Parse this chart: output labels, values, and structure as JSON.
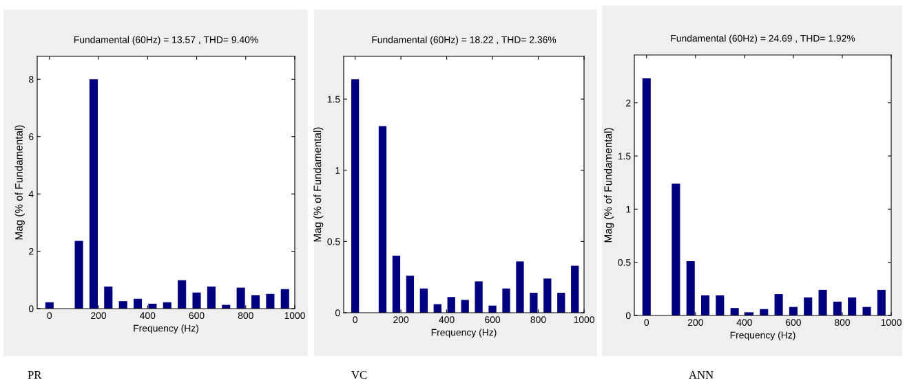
{
  "chart_data": [
    {
      "type": "bar",
      "title": "Fundamental (60Hz) = 13.57 , THD= 9.40%",
      "xlabel": "Frequency (Hz)",
      "ylabel": "Mag (% of Fundamental)",
      "annotations": [
        "PR"
      ],
      "x": [
        0,
        60,
        120,
        180,
        240,
        300,
        360,
        420,
        480,
        540,
        600,
        660,
        720,
        780,
        840,
        900,
        960
      ],
      "series": [
        {
          "color": "#000080",
          "values": [
            0.22,
            null,
            2.36,
            8.0,
            0.77,
            0.26,
            0.34,
            0.17,
            0.22,
            0.99,
            0.56,
            0.77,
            0.13,
            0.73,
            0.47,
            0.51,
            0.68
          ]
        }
      ],
      "xlim": [
        -50,
        1000
      ],
      "xticks": [
        0,
        200,
        400,
        600,
        800,
        1000
      ],
      "ylim": [
        0,
        8.8
      ],
      "yticks": [
        0,
        2,
        4,
        6,
        8
      ],
      "grid": false,
      "legend": false
    },
    {
      "type": "bar",
      "title": "Fundamental (60Hz) = 18.22 , THD= 2.36%",
      "xlabel": "Frequency (Hz)",
      "ylabel": "Mag (% of Fundamental)",
      "annotations": [
        "VC"
      ],
      "x": [
        0,
        60,
        120,
        180,
        240,
        300,
        360,
        420,
        480,
        540,
        600,
        660,
        720,
        780,
        840,
        900,
        960
      ],
      "series": [
        {
          "color": "#000080",
          "values": [
            1.64,
            null,
            1.31,
            0.4,
            0.26,
            0.17,
            0.06,
            0.11,
            0.09,
            0.22,
            0.05,
            0.17,
            0.36,
            0.14,
            0.24,
            0.14,
            0.33
          ]
        }
      ],
      "xlim": [
        -50,
        1000
      ],
      "xticks": [
        0,
        200,
        400,
        600,
        800,
        1000
      ],
      "ylim": [
        0,
        1.8
      ],
      "yticks": [
        0,
        0.5,
        1,
        1.5
      ],
      "grid": false,
      "legend": false
    },
    {
      "type": "bar",
      "title": "Fundamental (60Hz) = 24.69 , THD= 1.92%",
      "xlabel": "Frequency (Hz)",
      "ylabel": "Mag (% of Fundamental)",
      "annotations": [
        "ANN"
      ],
      "x": [
        0,
        60,
        120,
        180,
        240,
        300,
        360,
        420,
        480,
        540,
        600,
        660,
        720,
        780,
        840,
        900,
        960
      ],
      "series": [
        {
          "color": "#000080",
          "values": [
            2.23,
            null,
            1.24,
            0.51,
            0.19,
            0.19,
            0.07,
            0.03,
            0.06,
            0.2,
            0.08,
            0.17,
            0.24,
            0.13,
            0.17,
            0.08,
            0.24
          ]
        }
      ],
      "xlim": [
        -50,
        1000
      ],
      "xticks": [
        0,
        200,
        400,
        600,
        800,
        1000
      ],
      "ylim": [
        0,
        2.45
      ],
      "yticks": [
        0,
        0.5,
        1,
        1.5,
        2
      ],
      "grid": false,
      "legend": false
    }
  ]
}
